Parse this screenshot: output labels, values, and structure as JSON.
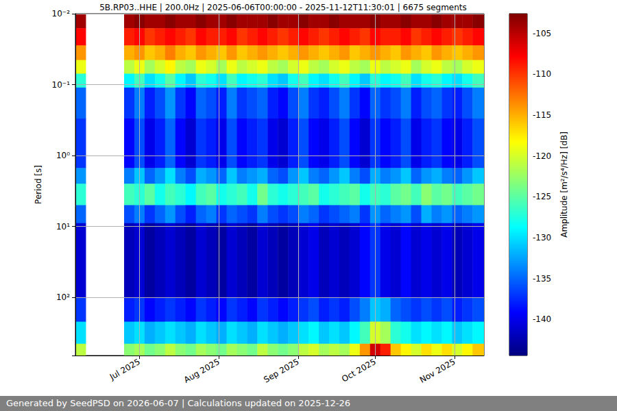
{
  "chart_data": {
    "type": "heatmap",
    "title": "5B.RP03..HHE | 200.0Hz | 2025-06-06T00:00:00 - 2025-11-12T11:30:01 | 6675 segments",
    "footer": "Generated by SeedPSD on 2026-06-07 | Calculations updated on 2025-12-26",
    "ylabel": "Period [s]",
    "log": "y",
    "grid": true,
    "xlim": [
      "2025-06-06T00:00:00",
      "2025-11-12T11:30:01"
    ],
    "xticks": [
      {
        "value": "2025-07-01",
        "label": "Jul 2025"
      },
      {
        "value": "2025-08-01",
        "label": "Aug 2025"
      },
      {
        "value": "2025-09-01",
        "label": "Sep 2025"
      },
      {
        "value": "2025-10-01",
        "label": "Oct 2025"
      },
      {
        "value": "2025-11-01",
        "label": "Nov 2025"
      }
    ],
    "ylim": [
      0.01,
      660
    ],
    "yticks": [
      {
        "value": 0.01,
        "label": "10⁻²"
      },
      {
        "value": 0.1,
        "label": "10⁻¹"
      },
      {
        "value": 1,
        "label": "10⁰"
      },
      {
        "value": 10,
        "label": "10¹"
      },
      {
        "value": 100,
        "label": "10²"
      }
    ],
    "x_bins": [
      "2025-06-06",
      "2025-06-10",
      "2025-06-25",
      "2025-06-29",
      "2025-07-03",
      "2025-07-07",
      "2025-07-11",
      "2025-07-15",
      "2025-07-19",
      "2025-07-23",
      "2025-07-27",
      "2025-07-31",
      "2025-08-04",
      "2025-08-08",
      "2025-08-12",
      "2025-08-16",
      "2025-08-20",
      "2025-08-24",
      "2025-08-28",
      "2025-09-01",
      "2025-09-05",
      "2025-09-09",
      "2025-09-13",
      "2025-09-17",
      "2025-09-21",
      "2025-09-25",
      "2025-09-29",
      "2025-10-03",
      "2025-10-07",
      "2025-10-11",
      "2025-10-15",
      "2025-10-19",
      "2025-10-23",
      "2025-10-27",
      "2025-10-31",
      "2025-11-04",
      "2025-11-08",
      "2025-11-12T11:30:01"
    ],
    "y_bins": [
      0.01,
      0.016,
      0.028,
      0.045,
      0.07,
      0.11,
      0.3,
      1.5,
      2.5,
      5,
      9,
      100,
      220,
      450,
      660
    ],
    "values": [
      [
        -104,
        null,
        -104,
        -103,
        -104,
        -104,
        -103,
        -104,
        -104,
        -103,
        -104,
        -104,
        -103,
        -104,
        -104,
        -104,
        -103,
        -104,
        -104,
        -103,
        -104,
        -104,
        -103,
        -104,
        -104,
        -104,
        -103,
        -104,
        -104,
        -103,
        -104,
        -104,
        -103,
        -104,
        -104,
        -104,
        -103
      ],
      [
        -108,
        null,
        -109,
        -108,
        -110,
        -109,
        -108,
        -109,
        -110,
        -108,
        -109,
        -109,
        -108,
        -110,
        -109,
        -108,
        -109,
        -110,
        -109,
        -108,
        -109,
        -110,
        -109,
        -108,
        -109,
        -110,
        -108,
        -109,
        -109,
        -108,
        -110,
        -109,
        -108,
        -109,
        -110,
        -109,
        -108
      ],
      [
        -114,
        null,
        -115,
        -114,
        -116,
        -115,
        -113,
        -115,
        -116,
        -114,
        -115,
        -116,
        -114,
        -116,
        -115,
        -114,
        -115,
        -116,
        -115,
        -114,
        -115,
        -116,
        -115,
        -114,
        -116,
        -115,
        -114,
        -115,
        -116,
        -114,
        -115,
        -116,
        -114,
        -115,
        -116,
        -115,
        -114
      ],
      [
        -119,
        null,
        -121,
        -119,
        -122,
        -120,
        -118,
        -121,
        -122,
        -119,
        -120,
        -122,
        -119,
        -121,
        -120,
        -119,
        -121,
        -122,
        -120,
        -119,
        -121,
        -122,
        -120,
        -119,
        -121,
        -122,
        -119,
        -121,
        -120,
        -119,
        -122,
        -120,
        -119,
        -121,
        -122,
        -120,
        -119
      ],
      [
        -127,
        null,
        -129,
        -126,
        -130,
        -128,
        -125,
        -129,
        -131,
        -127,
        -128,
        -130,
        -126,
        -129,
        -128,
        -127,
        -130,
        -131,
        -128,
        -126,
        -129,
        -130,
        -128,
        -126,
        -129,
        -131,
        -127,
        -129,
        -128,
        -126,
        -130,
        -128,
        -127,
        -129,
        -130,
        -128,
        -126
      ],
      [
        -135,
        null,
        -137,
        -134,
        -138,
        -136,
        -133,
        -137,
        -139,
        -135,
        -136,
        -138,
        -134,
        -137,
        -136,
        -135,
        -138,
        -139,
        -136,
        -134,
        -137,
        -138,
        -136,
        -134,
        -137,
        -139,
        -135,
        -137,
        -136,
        -134,
        -138,
        -136,
        -135,
        -137,
        -138,
        -136,
        -134
      ],
      [
        -137,
        null,
        -139,
        -136,
        -140,
        -138,
        -135,
        -139,
        -141,
        -137,
        -138,
        -140,
        -136,
        -139,
        -138,
        -137,
        -140,
        -141,
        -138,
        -136,
        -139,
        -140,
        -138,
        -136,
        -139,
        -141,
        -137,
        -139,
        -138,
        -136,
        -140,
        -138,
        -137,
        -139,
        -140,
        -138,
        -136
      ],
      [
        -133,
        null,
        -134,
        -131,
        -135,
        -133,
        -130,
        -134,
        -136,
        -132,
        -133,
        -135,
        -131,
        -134,
        -133,
        -132,
        -135,
        -136,
        -133,
        -131,
        -134,
        -135,
        -133,
        -131,
        -134,
        -136,
        -132,
        -134,
        -133,
        -131,
        -135,
        -133,
        -132,
        -134,
        -135,
        -133,
        -131
      ],
      [
        -127,
        null,
        -126,
        -127,
        -125,
        -128,
        -126,
        -127,
        -129,
        -126,
        -125,
        -128,
        -127,
        -126,
        -128,
        -124,
        -127,
        -128,
        -127,
        -126,
        -125,
        -128,
        -127,
        -126,
        -125,
        -128,
        -126,
        -127,
        -125,
        -124,
        -126,
        -123,
        -125,
        -124,
        -126,
        -125,
        -124
      ],
      [
        -135,
        null,
        -136,
        -134,
        -137,
        -135,
        -133,
        -136,
        -138,
        -135,
        -134,
        -137,
        -135,
        -136,
        -137,
        -134,
        -136,
        -137,
        -136,
        -134,
        -135,
        -137,
        -136,
        -135,
        -134,
        -137,
        -133,
        -135,
        -134,
        -133,
        -136,
        -132,
        -134,
        -133,
        -135,
        -134,
        -133
      ],
      [
        -141,
        null,
        -142,
        -141,
        -143,
        -142,
        -141,
        -142,
        -143,
        -141,
        -142,
        -143,
        -141,
        -142,
        -143,
        -141,
        -142,
        -143,
        -142,
        -141,
        -140,
        -142,
        -141,
        -142,
        -141,
        -139,
        -137,
        -140,
        -141,
        -139,
        -141,
        -140,
        -141,
        -140,
        -142,
        -141,
        -140
      ],
      [
        -137,
        null,
        -138,
        -137,
        -139,
        -138,
        -137,
        -138,
        -139,
        -137,
        -138,
        -139,
        -137,
        -138,
        -139,
        -137,
        -138,
        -139,
        -138,
        -137,
        -136,
        -138,
        -137,
        -138,
        -136,
        -134,
        -131,
        -132,
        -135,
        -136,
        -137,
        -136,
        -137,
        -136,
        -138,
        -137,
        -136
      ],
      [
        -130,
        null,
        -131,
        -130,
        -132,
        -131,
        -130,
        -131,
        -132,
        -130,
        -131,
        -132,
        -130,
        -131,
        -132,
        -130,
        -131,
        -132,
        -131,
        -130,
        -129,
        -131,
        -130,
        -131,
        -129,
        -126,
        -120,
        -122,
        -127,
        -128,
        -130,
        -129,
        -130,
        -129,
        -131,
        -130,
        -129
      ],
      [
        -121,
        null,
        -123,
        -122,
        -124,
        -123,
        -121,
        -123,
        -124,
        -122,
        -123,
        -124,
        -122,
        -123,
        -124,
        -121,
        -123,
        -124,
        -123,
        -121,
        -120,
        -122,
        -121,
        -122,
        -119,
        -114,
        -106,
        -109,
        -116,
        -118,
        -120,
        -117,
        -119,
        -117,
        -120,
        -118,
        -116
      ]
    ],
    "colorbar": {
      "label": "Amplitude [m²/s⁴/Hz] [dB]",
      "lim": [
        -144.4,
        -102.6
      ],
      "ticks": [
        -140,
        -135,
        -130,
        -125,
        -120,
        -115,
        -110,
        -105
      ]
    }
  }
}
